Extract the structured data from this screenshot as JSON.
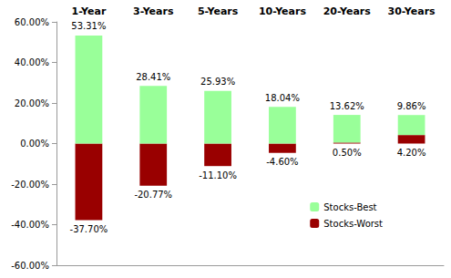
{
  "chart_data": {
    "type": "bar",
    "categories": [
      "1-Year",
      "3-Years",
      "5-Years",
      "10-Years",
      "20-Years",
      "30-Years"
    ],
    "series": [
      {
        "name": "Stocks-Best",
        "color": "#99ff99",
        "values": [
          53.31,
          28.41,
          25.93,
          18.04,
          13.62,
          9.86
        ],
        "value_labels": [
          "53.31%",
          "28.41%",
          "25.93%",
          "18.04%",
          "13.62%",
          "9.86%"
        ]
      },
      {
        "name": "Stocks-Worst",
        "color": "#990000",
        "values": [
          -37.7,
          -20.77,
          -11.1,
          -4.6,
          0.5,
          4.2
        ],
        "value_labels": [
          "-37.70%",
          "-20.77%",
          "-11.10%",
          "-4.60%",
          "0.50%",
          "4.20%"
        ]
      }
    ],
    "ylim": [
      -60,
      60
    ],
    "yticks": [
      {
        "value": -60,
        "label": "-60.00%"
      },
      {
        "value": -40,
        "label": "-40.00%"
      },
      {
        "value": -20,
        "label": "-20.00%"
      },
      {
        "value": 0,
        "label": "0.00%"
      },
      {
        "value": 20,
        "label": "20.00%"
      },
      {
        "value": 40,
        "label": "40.00%"
      },
      {
        "value": 60,
        "label": "60.00%"
      }
    ],
    "grid": false,
    "legend": "lower right",
    "stacked": true,
    "data_labels": true
  }
}
